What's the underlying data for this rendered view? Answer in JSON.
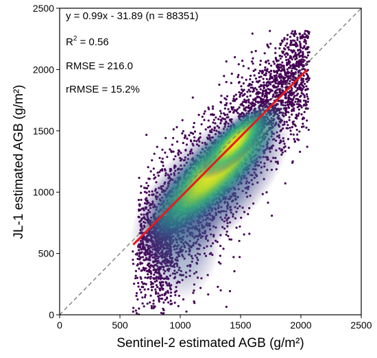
{
  "chart_data": {
    "type": "scatter",
    "xlabel": "Sentinel-2 estimated AGB (g/m²)",
    "ylabel": "JL-1 estimated AGB (g/m²)",
    "xlim": [
      0,
      2500
    ],
    "ylim": [
      0,
      2500
    ],
    "x_ticks": [
      "0",
      "500",
      "1000",
      "1500",
      "2000",
      "2500"
    ],
    "y_ticks": [
      "0",
      "500",
      "1000",
      "1500",
      "2000",
      "2500"
    ],
    "grid": false,
    "colormap": "viridis (point density)",
    "colors": {
      "fit_line": "#e8191c",
      "one_to_one": "#777777",
      "density_low": "#440154",
      "density_high": "#fde725"
    },
    "point_cloud": {
      "x_range": [
        600,
        2080
      ],
      "y_range": [
        0,
        2320
      ],
      "density_peak": {
        "x": 1450,
        "y": 1400
      }
    },
    "fit_line": {
      "slope": 0.99,
      "intercept": -31.89,
      "x_range": [
        610,
        2050
      ]
    },
    "reference_line": {
      "label": "1:1",
      "from": [
        0,
        0
      ],
      "to": [
        2500,
        2500
      ]
    },
    "annotations": {
      "equation": "y = 0.99x - 31.89 (n = 88351)",
      "r2_prefix": "R",
      "r2_sup": "2",
      "r2_suffix": " = 0.56",
      "rmse": "RMSE = 216.0",
      "rrmse": "rRMSE = 15.2%"
    }
  }
}
